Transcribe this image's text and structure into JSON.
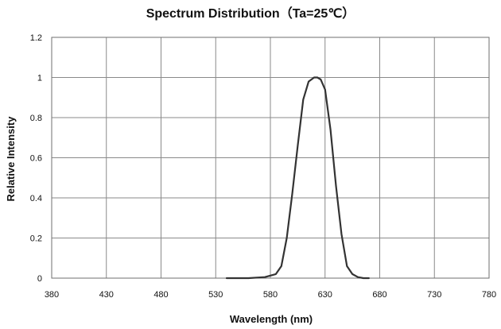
{
  "chart_data": {
    "type": "line",
    "title": "Spectrum Distribution（Ta=25℃）",
    "xlabel": "Wavelength (nm)",
    "ylabel": "Relative Intensity",
    "xlim": [
      380,
      780
    ],
    "ylim": [
      0,
      1.2
    ],
    "x_ticks": [
      "380",
      "430",
      "480",
      "530",
      "580",
      "630",
      "680",
      "730",
      "780"
    ],
    "y_ticks": [
      "0",
      "0.2",
      "0.4",
      "0.6",
      "0.8",
      "1",
      "1.2"
    ],
    "grid": true,
    "legend": "none",
    "series": [
      {
        "x": [
          540,
          560,
          575,
          585,
          590,
          595,
          600,
          605,
          610,
          615,
          620,
          623,
          626,
          630,
          635,
          640,
          645,
          650,
          655,
          660,
          665,
          670
        ],
        "y": [
          0.0,
          0.0,
          0.005,
          0.02,
          0.06,
          0.2,
          0.42,
          0.66,
          0.89,
          0.98,
          1.0,
          1.0,
          0.99,
          0.94,
          0.74,
          0.46,
          0.22,
          0.06,
          0.02,
          0.005,
          0.0,
          0.0
        ],
        "color": "#333333"
      }
    ]
  }
}
